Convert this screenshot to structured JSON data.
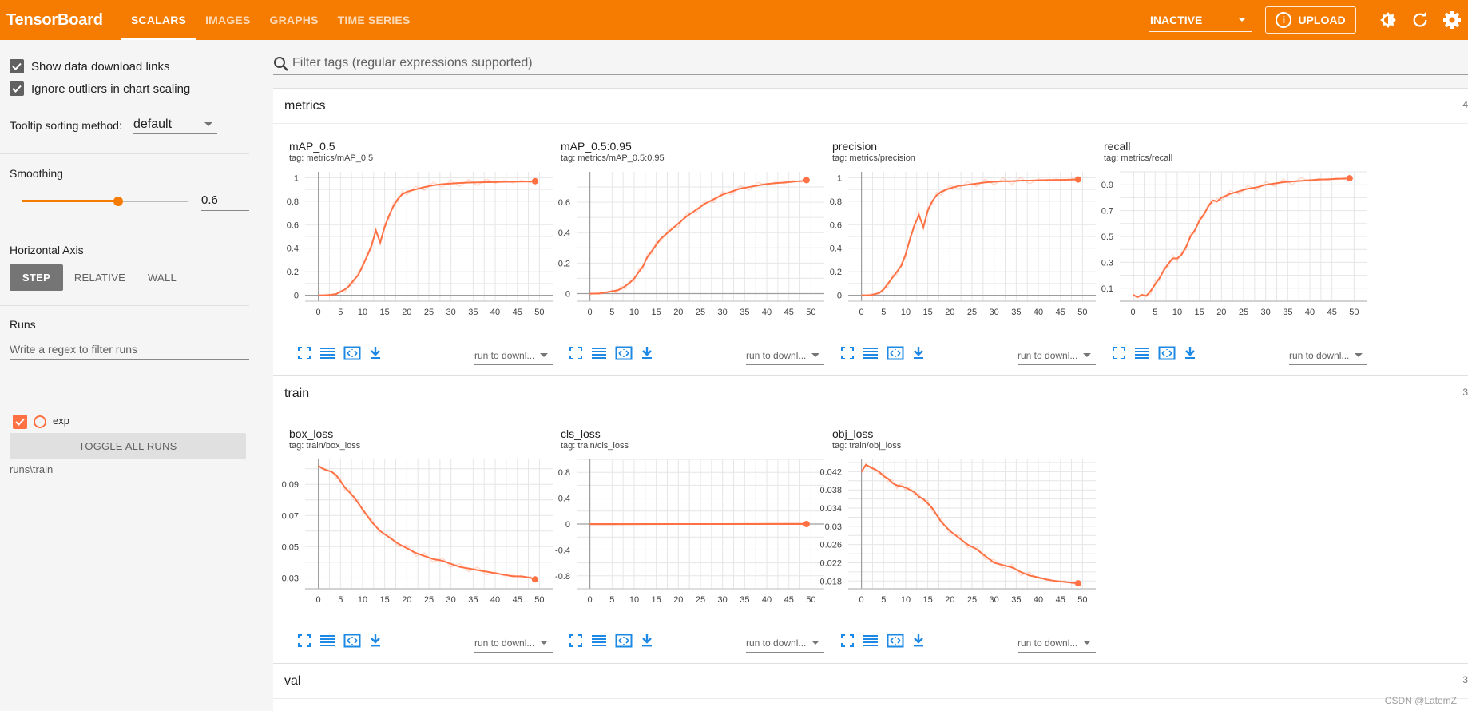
{
  "header": {
    "brand": "TensorBoard",
    "tabs": [
      {
        "label": "SCALARS",
        "active": true
      },
      {
        "label": "IMAGES",
        "active": false
      },
      {
        "label": "GRAPHS",
        "active": false
      },
      {
        "label": "TIME SERIES",
        "active": false
      }
    ],
    "status_select": "INACTIVE",
    "upload_label": "UPLOAD"
  },
  "sidebar": {
    "show_download_links": {
      "label": "Show data download links",
      "checked": true
    },
    "ignore_outliers": {
      "label": "Ignore outliers in chart scaling",
      "checked": true
    },
    "tooltip_label": "Tooltip sorting method:",
    "tooltip_value": "default",
    "smoothing_label": "Smoothing",
    "smoothing_value": "0.6",
    "horizontal_axis_label": "Horizontal Axis",
    "axis_buttons": [
      "STEP",
      "RELATIVE",
      "WALL"
    ],
    "axis_selected": "STEP",
    "runs_label": "Runs",
    "runs_filter_placeholder": "Write a regex to filter runs",
    "run_name": "exp",
    "toggle_all_label": "TOGGLE ALL RUNS",
    "run_path": "runs\\train"
  },
  "filter": {
    "placeholder": "Filter tags (regular expressions supported)"
  },
  "run_select_label": "run to downl...",
  "series_color": "#ff7043",
  "accent_color": "#f57c00",
  "watermark": "CSDN @LatemZ",
  "sections": [
    {
      "name": "metrics",
      "count": "4"
    },
    {
      "name": "train",
      "count": "3"
    },
    {
      "name": "val",
      "count": "3"
    }
  ],
  "chart_data": [
    {
      "type": "line",
      "title": "mAP_0.5",
      "tag": "tag: metrics/mAP_0.5",
      "xlim": [
        -3,
        53
      ],
      "ylim": [
        -0.05,
        1.05
      ],
      "x_ticks": [
        0,
        5,
        10,
        15,
        20,
        25,
        30,
        35,
        40,
        45,
        50
      ],
      "y_ticks": [
        0,
        0.2,
        0.4,
        0.6,
        0.8,
        1
      ],
      "y_tick_labels": [
        "0",
        "0.2",
        "0.4",
        "0.6",
        "0.8",
        "1"
      ],
      "x": [
        0,
        2,
        4,
        5,
        6,
        7,
        8,
        9,
        10,
        11,
        12,
        13,
        14,
        15,
        16,
        17,
        18,
        19,
        20,
        22,
        24,
        26,
        28,
        30,
        32,
        34,
        36,
        38,
        40,
        42,
        44,
        46,
        48,
        49
      ],
      "y": [
        0,
        0,
        0.01,
        0.03,
        0.05,
        0.08,
        0.13,
        0.17,
        0.25,
        0.33,
        0.42,
        0.55,
        0.45,
        0.58,
        0.68,
        0.76,
        0.82,
        0.86,
        0.88,
        0.9,
        0.92,
        0.935,
        0.945,
        0.95,
        0.955,
        0.958,
        0.96,
        0.962,
        0.963,
        0.965,
        0.966,
        0.967,
        0.968,
        0.97
      ]
    },
    {
      "type": "line",
      "title": "mAP_0.5:0.95",
      "tag": "tag: metrics/mAP_0.5:0.95",
      "xlim": [
        -3,
        53
      ],
      "ylim": [
        -0.05,
        0.8
      ],
      "x_ticks": [
        0,
        5,
        10,
        15,
        20,
        25,
        30,
        35,
        40,
        45,
        50
      ],
      "y_ticks": [
        0,
        0.2,
        0.4,
        0.6
      ],
      "y_tick_labels": [
        "0",
        "0.2",
        "0.4",
        "0.6"
      ],
      "x": [
        0,
        2,
        4,
        5,
        6,
        7,
        8,
        9,
        10,
        11,
        12,
        13,
        14,
        15,
        16,
        18,
        20,
        22,
        24,
        26,
        28,
        30,
        32,
        34,
        36,
        38,
        40,
        42,
        44,
        46,
        48,
        49
      ],
      "y": [
        0,
        0,
        0.01,
        0.015,
        0.02,
        0.03,
        0.05,
        0.07,
        0.1,
        0.14,
        0.18,
        0.24,
        0.28,
        0.32,
        0.36,
        0.41,
        0.46,
        0.51,
        0.55,
        0.59,
        0.62,
        0.65,
        0.67,
        0.69,
        0.7,
        0.71,
        0.72,
        0.725,
        0.73,
        0.735,
        0.74,
        0.745
      ]
    },
    {
      "type": "line",
      "title": "precision",
      "tag": "tag: metrics/precision",
      "xlim": [
        -3,
        53
      ],
      "ylim": [
        -0.05,
        1.05
      ],
      "x_ticks": [
        0,
        5,
        10,
        15,
        20,
        25,
        30,
        35,
        40,
        45,
        50
      ],
      "y_ticks": [
        0,
        0.2,
        0.4,
        0.6,
        0.8,
        1
      ],
      "y_tick_labels": [
        "0",
        "0.2",
        "0.4",
        "0.6",
        "0.8",
        "1"
      ],
      "x": [
        0,
        2,
        4,
        5,
        6,
        7,
        8,
        9,
        10,
        11,
        12,
        13,
        14,
        15,
        16,
        17,
        18,
        20,
        22,
        24,
        26,
        28,
        30,
        32,
        34,
        36,
        38,
        40,
        42,
        44,
        46,
        48,
        49
      ],
      "y": [
        0,
        0,
        0.02,
        0.05,
        0.1,
        0.15,
        0.2,
        0.25,
        0.35,
        0.48,
        0.6,
        0.68,
        0.58,
        0.72,
        0.8,
        0.85,
        0.88,
        0.91,
        0.93,
        0.94,
        0.95,
        0.96,
        0.965,
        0.97,
        0.97,
        0.975,
        0.975,
        0.978,
        0.98,
        0.98,
        0.982,
        0.984,
        0.985
      ]
    },
    {
      "type": "line",
      "title": "recall",
      "tag": "tag: metrics/recall",
      "xlim": [
        -3,
        53
      ],
      "ylim": [
        0,
        1.0
      ],
      "x_ticks": [
        0,
        5,
        10,
        15,
        20,
        25,
        30,
        35,
        40,
        45,
        50
      ],
      "y_ticks": [
        0.1,
        0.3,
        0.5,
        0.7,
        0.9
      ],
      "y_tick_labels": [
        "0.1",
        "0.3",
        "0.5",
        "0.7",
        "0.9"
      ],
      "x": [
        0,
        1,
        2,
        3,
        4,
        5,
        6,
        7,
        8,
        9,
        10,
        11,
        12,
        13,
        14,
        15,
        16,
        17,
        18,
        19,
        20,
        22,
        24,
        26,
        28,
        30,
        32,
        34,
        36,
        38,
        40,
        42,
        44,
        46,
        48,
        49
      ],
      "y": [
        0.05,
        0.03,
        0.05,
        0.04,
        0.08,
        0.13,
        0.18,
        0.24,
        0.29,
        0.33,
        0.33,
        0.36,
        0.42,
        0.5,
        0.55,
        0.62,
        0.67,
        0.73,
        0.78,
        0.77,
        0.8,
        0.83,
        0.85,
        0.87,
        0.88,
        0.9,
        0.91,
        0.92,
        0.925,
        0.93,
        0.935,
        0.94,
        0.942,
        0.945,
        0.948,
        0.95
      ]
    },
    {
      "type": "line",
      "title": "box_loss",
      "tag": "tag: train/box_loss",
      "xlim": [
        -3,
        53
      ],
      "ylim": [
        0.023,
        0.106
      ],
      "x_ticks": [
        0,
        5,
        10,
        15,
        20,
        25,
        30,
        35,
        40,
        45,
        50
      ],
      "y_ticks": [
        0.03,
        0.05,
        0.07,
        0.09
      ],
      "y_tick_labels": [
        "0.03",
        "0.05",
        "0.07",
        "0.09"
      ],
      "x": [
        0,
        1,
        2,
        3,
        4,
        5,
        6,
        7,
        8,
        9,
        10,
        12,
        14,
        16,
        18,
        20,
        22,
        24,
        26,
        28,
        30,
        32,
        34,
        36,
        38,
        40,
        42,
        44,
        46,
        48,
        49
      ],
      "y": [
        0.102,
        0.1,
        0.099,
        0.098,
        0.096,
        0.092,
        0.088,
        0.085,
        0.082,
        0.078,
        0.074,
        0.066,
        0.06,
        0.056,
        0.052,
        0.049,
        0.046,
        0.044,
        0.042,
        0.041,
        0.039,
        0.037,
        0.036,
        0.035,
        0.034,
        0.033,
        0.032,
        0.031,
        0.031,
        0.03,
        0.029
      ]
    },
    {
      "type": "line",
      "title": "cls_loss",
      "tag": "tag: train/cls_loss",
      "xlim": [
        -3,
        53
      ],
      "ylim": [
        -1.0,
        1.0
      ],
      "x_ticks": [
        0,
        5,
        10,
        15,
        20,
        25,
        30,
        35,
        40,
        45,
        50
      ],
      "y_ticks": [
        -0.8,
        -0.4,
        0,
        0.4,
        0.8
      ],
      "y_tick_labels": [
        "-0.8",
        "-0.4",
        "0",
        "0.4",
        "0.8"
      ],
      "x": [
        0,
        49
      ],
      "y": [
        0,
        0
      ]
    },
    {
      "type": "line",
      "title": "obj_loss",
      "tag": "tag: train/obj_loss",
      "xlim": [
        -3,
        53
      ],
      "ylim": [
        0.0163,
        0.0447
      ],
      "x_ticks": [
        0,
        5,
        10,
        15,
        20,
        25,
        30,
        35,
        40,
        45,
        50
      ],
      "y_ticks": [
        0.018,
        0.022,
        0.026,
        0.03,
        0.034,
        0.038,
        0.042
      ],
      "y_tick_labels": [
        "0.018",
        "0.022",
        "0.026",
        "0.03",
        "0.034",
        "0.038",
        "0.042"
      ],
      "x": [
        0,
        1,
        2,
        3,
        4,
        5,
        6,
        7,
        8,
        9,
        10,
        11,
        12,
        13,
        14,
        15,
        16,
        18,
        20,
        22,
        24,
        26,
        28,
        30,
        32,
        34,
        36,
        38,
        40,
        42,
        44,
        46,
        48,
        49
      ],
      "y": [
        0.042,
        0.0435,
        0.043,
        0.0425,
        0.042,
        0.041,
        0.0405,
        0.0395,
        0.039,
        0.0388,
        0.0385,
        0.038,
        0.0375,
        0.0365,
        0.036,
        0.035,
        0.034,
        0.031,
        0.029,
        0.0275,
        0.026,
        0.025,
        0.0235,
        0.022,
        0.0215,
        0.021,
        0.02,
        0.0192,
        0.0188,
        0.0183,
        0.018,
        0.0178,
        0.0176,
        0.0175
      ]
    }
  ]
}
